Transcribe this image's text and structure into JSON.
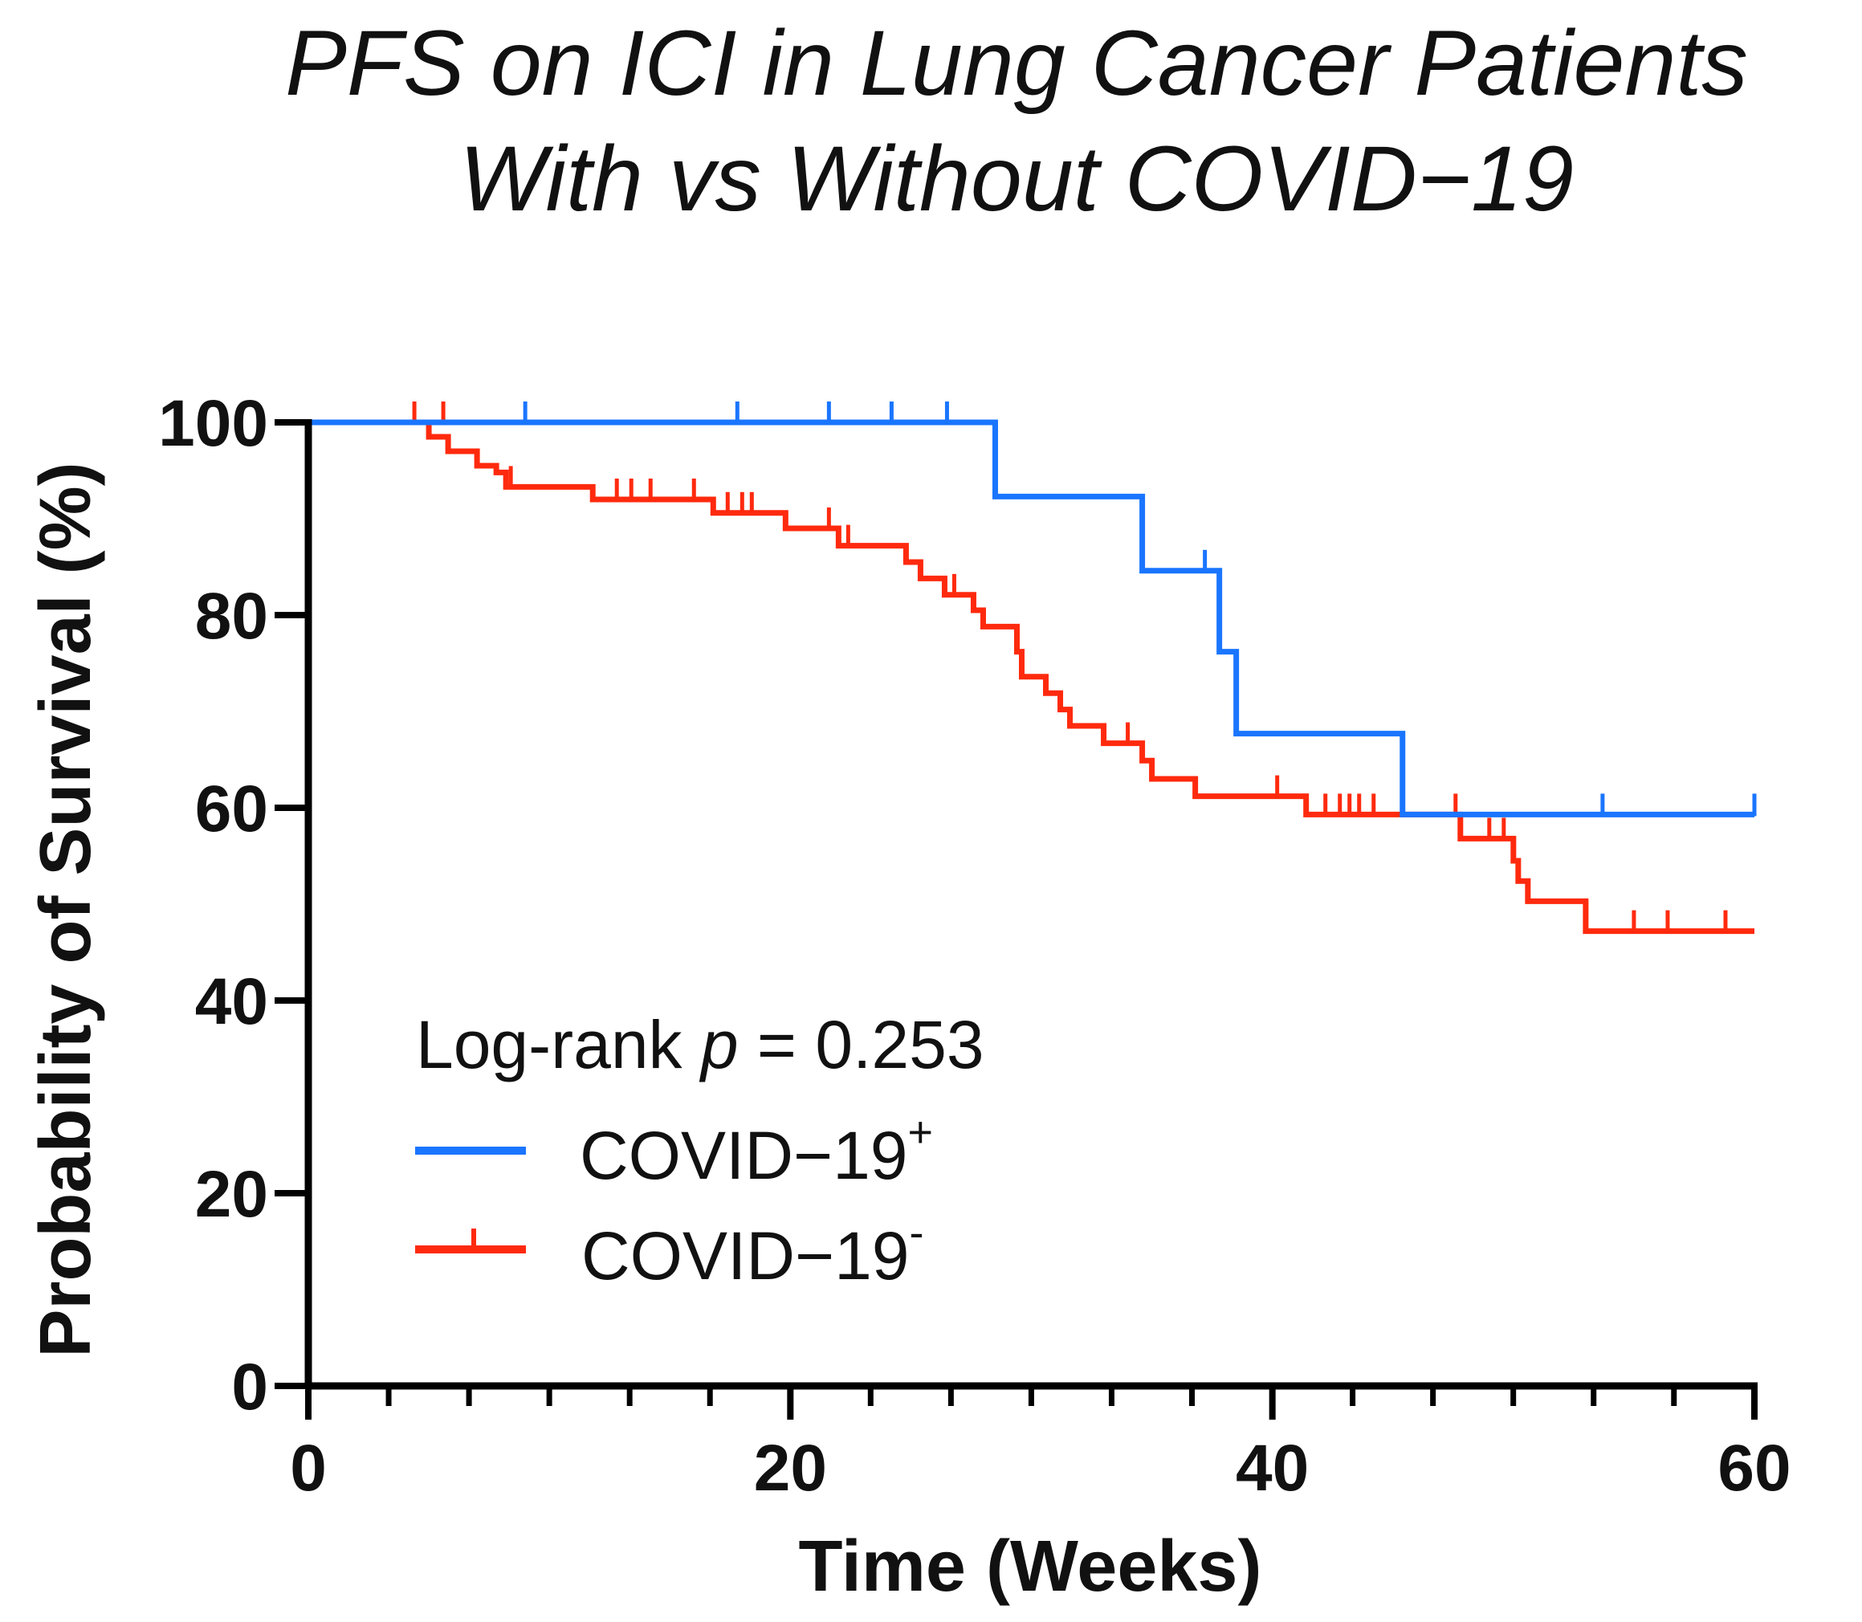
{
  "chart_data": {
    "type": "line",
    "subtype": "kaplan-meier",
    "title": [
      "PFS on ICI in Lung Cancer Patients",
      "With vs Without COVID−19"
    ],
    "xlabel": "Time (Weeks)",
    "ylabel": "Probability of Survival (%)",
    "xlim": [
      0,
      60
    ],
    "ylim": [
      0,
      100
    ],
    "xticks": [
      0,
      20,
      40,
      60
    ],
    "yticks": [
      0,
      20,
      40,
      60,
      80,
      100
    ],
    "xtick_labels": [
      "0",
      "20",
      "40",
      "60"
    ],
    "ytick_labels": [
      "0",
      "20",
      "40",
      "60",
      "80",
      "100"
    ],
    "x_minor_step": 3.333,
    "grid": false,
    "annotation": {
      "prefix": "Log-rank ",
      "p_symbol": "p",
      "suffix": " = 0.253"
    },
    "legend_position": "bottom-left",
    "series": [
      {
        "name": "COVID−19",
        "name_sup": "+",
        "color": "#1a75ff",
        "steps": [
          [
            0,
            100
          ],
          [
            28.5,
            92.3
          ],
          [
            34.6,
            84.6
          ],
          [
            37.8,
            76.2
          ],
          [
            38.5,
            67.7
          ],
          [
            45.4,
            59.3
          ],
          [
            60,
            59.3
          ]
        ],
        "censored": [
          [
            9,
            100
          ],
          [
            17.8,
            100
          ],
          [
            21.6,
            100
          ],
          [
            24.2,
            100
          ],
          [
            26.5,
            100
          ],
          [
            37.2,
            84.6
          ],
          [
            53.7,
            59.3
          ],
          [
            60,
            59.3
          ]
        ]
      },
      {
        "name": "COVID−19",
        "name_sup": "-",
        "color": "#ff2a0e",
        "steps": [
          [
            0,
            100
          ],
          [
            5.0,
            98.5
          ],
          [
            5.8,
            97.0
          ],
          [
            7.0,
            95.5
          ],
          [
            7.8,
            94.8
          ],
          [
            8.2,
            93.3
          ],
          [
            11.8,
            92.0
          ],
          [
            16.8,
            90.6
          ],
          [
            19.8,
            89.0
          ],
          [
            22.0,
            87.2
          ],
          [
            24.8,
            85.5
          ],
          [
            25.4,
            83.8
          ],
          [
            26.4,
            82.1
          ],
          [
            27.6,
            80.5
          ],
          [
            28.0,
            78.8
          ],
          [
            29.4,
            76.2
          ],
          [
            29.6,
            73.6
          ],
          [
            30.6,
            71.9
          ],
          [
            31.2,
            70.2
          ],
          [
            31.6,
            68.5
          ],
          [
            33.0,
            66.7
          ],
          [
            34.6,
            64.9
          ],
          [
            35.0,
            63.0
          ],
          [
            36.8,
            61.2
          ],
          [
            41.4,
            59.3
          ],
          [
            47.8,
            56.8
          ],
          [
            50.0,
            54.5
          ],
          [
            50.2,
            52.4
          ],
          [
            50.6,
            50.3
          ],
          [
            53.0,
            47.2
          ],
          [
            60,
            47.2
          ]
        ],
        "censored": [
          [
            4.4,
            100
          ],
          [
            5.6,
            100
          ],
          [
            8.4,
            93.3
          ],
          [
            12.8,
            92.0
          ],
          [
            13.4,
            92.0
          ],
          [
            14.2,
            92.0
          ],
          [
            16.0,
            92.0
          ],
          [
            17.4,
            90.6
          ],
          [
            18.0,
            90.6
          ],
          [
            18.4,
            90.6
          ],
          [
            21.6,
            89.0
          ],
          [
            22.4,
            87.2
          ],
          [
            26.8,
            82.1
          ],
          [
            34.0,
            66.7
          ],
          [
            40.2,
            61.2
          ],
          [
            42.2,
            59.3
          ],
          [
            42.8,
            59.3
          ],
          [
            43.2,
            59.3
          ],
          [
            43.6,
            59.3
          ],
          [
            44.2,
            59.3
          ],
          [
            47.6,
            59.3
          ],
          [
            49.0,
            56.8
          ],
          [
            49.6,
            56.8
          ],
          [
            55.0,
            47.2
          ],
          [
            56.4,
            47.2
          ],
          [
            58.8,
            47.2
          ]
        ]
      }
    ]
  }
}
